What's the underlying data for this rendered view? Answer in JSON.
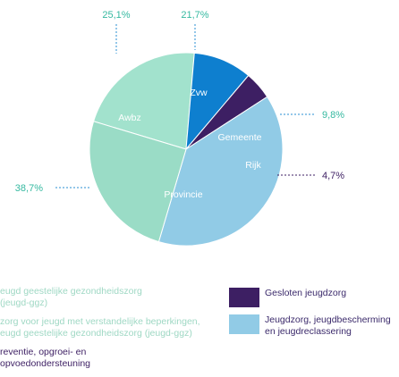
{
  "chart_data": {
    "type": "pie",
    "slices": [
      {
        "label": "Zvw",
        "value": 21.7,
        "value_label": "21,7%",
        "color": "#a2e2cd"
      },
      {
        "label": "Gemeente",
        "value": 9.8,
        "value_label": "9,8%",
        "color": "#0e7fcf"
      },
      {
        "label": "Rijk",
        "value": 4.7,
        "value_label": "4,7%",
        "color": "#3d1f63"
      },
      {
        "label": "Provincie",
        "value": 38.7,
        "value_label": "38,7%",
        "color": "#91cbe6"
      },
      {
        "label": "Awbz",
        "value": 25.1,
        "value_label": "25,1%",
        "color": "#9adcc6"
      }
    ],
    "label_color": "#35b9a0",
    "leader_color": "#2a8fd3"
  },
  "legend_left": [
    {
      "lines": [
        "eugd geestelijke gezondheidszorg",
        "(jeugd-ggz)"
      ],
      "color": "#9fd8c4"
    },
    {
      "lines": [
        "zorg voor jeugd met verstandelijke beperkingen,",
        "eugd geestelijke gezondheidszorg (jeugd-ggz)"
      ],
      "color": "#9fd8c4"
    },
    {
      "lines": [
        "reventie, opgroei- en",
        "opvoedondersteuning"
      ],
      "color": "#3d1f63"
    }
  ],
  "legend_right": [
    {
      "lines": [
        "Gesloten jeugdzorg"
      ],
      "color": "#3d1f63"
    },
    {
      "lines": [
        "Jeugdzorg, jeugdbescherming",
        "en jeugdreclassering"
      ],
      "color": "#91cbe6"
    }
  ]
}
